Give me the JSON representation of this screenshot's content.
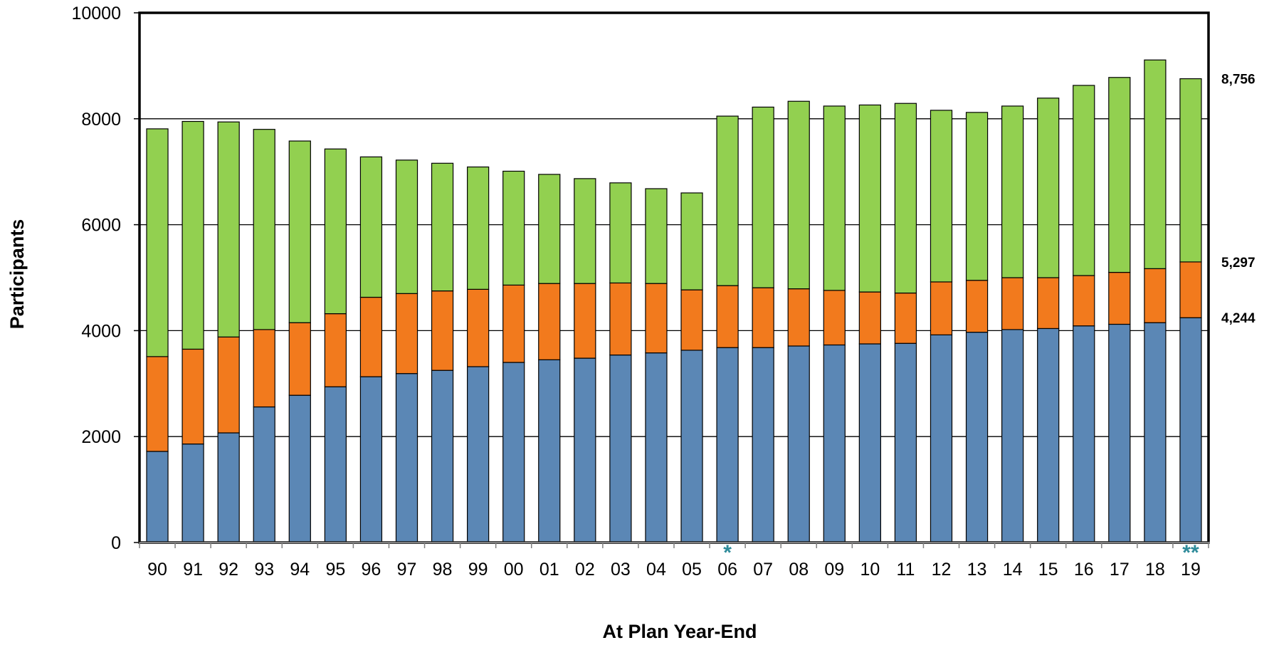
{
  "chart_data": {
    "type": "bar",
    "stacked": true,
    "title": "",
    "xlabel": "At Plan Year-End",
    "ylabel": "Participants",
    "ylim": [
      0,
      10000
    ],
    "yticks": [
      0,
      2000,
      4000,
      6000,
      8000,
      10000
    ],
    "grid": true,
    "legend": "none",
    "categories": [
      "90",
      "91",
      "92",
      "93",
      "94",
      "95",
      "96",
      "97",
      "98",
      "99",
      "00",
      "01",
      "02",
      "03",
      "04",
      "05",
      "06",
      "07",
      "08",
      "09",
      "10",
      "11",
      "12",
      "13",
      "14",
      "15",
      "16",
      "17",
      "18",
      "19"
    ],
    "series": [
      {
        "color": "#5b87b5",
        "values": [
          1720,
          1860,
          2070,
          2560,
          2780,
          2940,
          3130,
          3190,
          3250,
          3320,
          3400,
          3450,
          3480,
          3540,
          3580,
          3630,
          3680,
          3680,
          3710,
          3730,
          3750,
          3760,
          3920,
          3970,
          4020,
          4040,
          4090,
          4120,
          4150,
          4244
        ]
      },
      {
        "color": "#f27a1d",
        "values": [
          1790,
          1790,
          1810,
          1460,
          1370,
          1380,
          1500,
          1510,
          1500,
          1460,
          1460,
          1440,
          1410,
          1360,
          1310,
          1140,
          1170,
          1130,
          1080,
          1030,
          980,
          950,
          1000,
          980,
          980,
          960,
          950,
          980,
          1020,
          1053
        ]
      },
      {
        "color": "#92d050",
        "values": [
          4300,
          4300,
          4060,
          3780,
          3430,
          3110,
          2650,
          2520,
          2410,
          2310,
          2150,
          2060,
          1980,
          1890,
          1790,
          1830,
          3200,
          3410,
          3540,
          3480,
          3530,
          3580,
          3240,
          3170,
          3240,
          3390,
          3590,
          3680,
          3940,
          3459
        ]
      }
    ],
    "end_labels": [
      "8,756",
      "5,297",
      "4,244"
    ],
    "end_label_values": [
      8756,
      5297,
      4244
    ],
    "markers": [
      {
        "category": "06",
        "text": "*"
      },
      {
        "category": "19",
        "text": "**"
      }
    ]
  }
}
